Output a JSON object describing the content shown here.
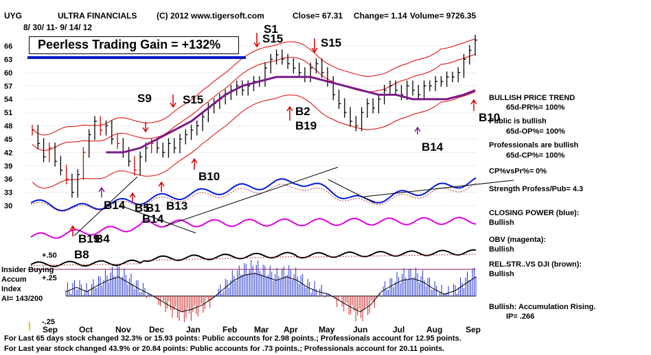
{
  "header": {
    "ticker": "UYG",
    "name": "ULTRA FINANCIALS",
    "copyright": "(C) 2012 www.tigersoft.com",
    "close": "Close=  67.31",
    "change": "Change= 1.14",
    "volume": "Volume= 9726.35",
    "date_range": "8/ 30/ 11-  9/ 14/ 12"
  },
  "gain_box": {
    "text": "Peerless Trading Gain = +132%"
  },
  "left_labels": {
    "insider": "Insider Buying",
    "accum": "Accum",
    "index": "Index",
    "ai": "AI= 143/200",
    "plus50": "+.50",
    "plus25": "+.25",
    "minus25": "-.25"
  },
  "side_labels": [
    "BULLISH PRICE TREND",
    "65d-PR%= 100%",
    "Public is bullish",
    "65d-OP%= 100%",
    "Professionals are bullish",
    "65d-CP%= 100%",
    "CP%vsPr%=  0%",
    "Strength Profess/Pub= 4.3",
    "CLOSING POWER (blue):",
    "Bullish",
    "OBV (magenta):",
    "Bullish",
    "REL.STR..VS DJI (brown):",
    "Bullish",
    "Bullish: Accumulation Rising.",
    "IP= .266"
  ],
  "footer": {
    "line1": "For Last 65 days stock changed  32.3% or  15.93 points:  Public accounts for  2.98 points.;  Professionals account for  12.95 points.",
    "line2": "For Last year stock changed  43.9% or  20.84 points:  Public accounts for  .73 points.;  Professionals account for  20.11 points."
  },
  "chart_data": {
    "type": "line",
    "y_ticks": [
      66,
      63,
      60,
      57,
      54,
      51,
      48,
      45,
      42,
      39,
      36,
      33,
      30
    ],
    "x_ticks": [
      "Sep",
      "Oct",
      "Nov",
      "Dec",
      "Jan",
      "Feb",
      "Mar",
      "Apr",
      "May",
      "Jun",
      "Jul",
      "Aug",
      "Sep"
    ],
    "ylim": [
      30,
      67
    ],
    "price_close": [
      [
        "Sep",
        47
      ],
      [
        "Sep",
        44
      ],
      [
        "Sep",
        41
      ],
      [
        "Sep",
        43
      ],
      [
        "Sep",
        40
      ],
      [
        "Sep",
        38
      ],
      [
        "Oct",
        36
      ],
      [
        "Oct",
        33
      ],
      [
        "Oct",
        37
      ],
      [
        "Oct",
        42
      ],
      [
        "Oct",
        46
      ],
      [
        "Oct",
        49
      ],
      [
        "Oct",
        47
      ],
      [
        "Oct",
        48
      ],
      [
        "Nov",
        45
      ],
      [
        "Nov",
        44
      ],
      [
        "Nov",
        42
      ],
      [
        "Nov",
        40
      ],
      [
        "Nov",
        38
      ],
      [
        "Nov",
        41
      ],
      [
        "Nov",
        43
      ],
      [
        "Nov",
        44
      ],
      [
        "Dec",
        43
      ],
      [
        "Dec",
        42
      ],
      [
        "Dec",
        44
      ],
      [
        "Dec",
        43
      ],
      [
        "Dec",
        45
      ],
      [
        "Dec",
        46
      ],
      [
        "Jan",
        47
      ],
      [
        "Jan",
        48
      ],
      [
        "Jan",
        50
      ],
      [
        "Jan",
        52
      ],
      [
        "Jan",
        53
      ],
      [
        "Jan",
        54
      ],
      [
        "Feb",
        55
      ],
      [
        "Feb",
        56
      ],
      [
        "Feb",
        57
      ],
      [
        "Feb",
        56
      ],
      [
        "Feb",
        57
      ],
      [
        "Feb",
        58
      ],
      [
        "Mar",
        58
      ],
      [
        "Mar",
        61
      ],
      [
        "Mar",
        63
      ],
      [
        "Mar",
        64
      ],
      [
        "Mar",
        63
      ],
      [
        "Mar",
        62
      ],
      [
        "Apr",
        61
      ],
      [
        "Apr",
        60
      ],
      [
        "Apr",
        59
      ],
      [
        "Apr",
        61
      ],
      [
        "Apr",
        62
      ],
      [
        "Apr",
        60
      ],
      [
        "May",
        58
      ],
      [
        "May",
        55
      ],
      [
        "May",
        53
      ],
      [
        "May",
        51
      ],
      [
        "May",
        49
      ],
      [
        "May",
        48
      ],
      [
        "Jun",
        51
      ],
      [
        "Jun",
        53
      ],
      [
        "Jun",
        52
      ],
      [
        "Jun",
        54
      ],
      [
        "Jun",
        56
      ],
      [
        "Jun",
        57
      ],
      [
        "Jul",
        56
      ],
      [
        "Jul",
        55
      ],
      [
        "Jul",
        57
      ],
      [
        "Jul",
        56
      ],
      [
        "Jul",
        55
      ],
      [
        "Jul",
        57
      ],
      [
        "Aug",
        57
      ],
      [
        "Aug",
        58
      ],
      [
        "Aug",
        58
      ],
      [
        "Aug",
        59
      ],
      [
        "Aug",
        59
      ],
      [
        "Aug",
        60
      ],
      [
        "Sep",
        63
      ],
      [
        "Sep",
        65
      ],
      [
        "Sep",
        67.31
      ]
    ],
    "moving_average_purple": [
      [
        13,
        42
      ],
      [
        16,
        42
      ],
      [
        19,
        43
      ],
      [
        22,
        45
      ],
      [
        25,
        47
      ],
      [
        28,
        49
      ],
      [
        31,
        52
      ],
      [
        34,
        55
      ],
      [
        37,
        57
      ],
      [
        40,
        58
      ],
      [
        43,
        59
      ],
      [
        46,
        59
      ],
      [
        49,
        59
      ],
      [
        52,
        58
      ],
      [
        55,
        57
      ],
      [
        58,
        56
      ],
      [
        61,
        55
      ],
      [
        64,
        55
      ],
      [
        67,
        54
      ],
      [
        70,
        54
      ],
      [
        73,
        54
      ],
      [
        76,
        55
      ],
      [
        78,
        56
      ]
    ],
    "signals": [
      {
        "label": "S1",
        "dir": "sell"
      },
      {
        "label": "S15",
        "dir": "sell"
      },
      {
        "label": "S15",
        "dir": "sell"
      },
      {
        "label": "S9",
        "dir": "sell"
      },
      {
        "label": "S15",
        "dir": "sell"
      },
      {
        "label": "B2",
        "dir": "buy"
      },
      {
        "label": "B19",
        "dir": "buy"
      },
      {
        "label": "B10",
        "dir": "buy"
      },
      {
        "label": "B10",
        "dir": "buy"
      },
      {
        "label": "B14",
        "dir": "buy"
      },
      {
        "label": "B14",
        "dir": "buy"
      },
      {
        "label": "B5",
        "dir": "buy"
      },
      {
        "label": "B1",
        "dir": "buy"
      },
      {
        "label": "B13",
        "dir": "buy"
      },
      {
        "label": "B14",
        "dir": "buy"
      },
      {
        "label": "B19",
        "dir": "buy"
      },
      {
        "label": "B4",
        "dir": "buy"
      },
      {
        "label": "B8",
        "dir": "buy"
      }
    ],
    "indicators": [
      "Closing Power (blue)",
      "OBV (magenta)",
      "Rel. Str. vs DJI (brown)",
      "Accumulation Index"
    ],
    "accum_index": [
      [
        0,
        0.05
      ],
      [
        2,
        0.1
      ],
      [
        4,
        0.05
      ],
      [
        6,
        0.12
      ],
      [
        8,
        0.18
      ],
      [
        10,
        0.22
      ],
      [
        12,
        0.15
      ],
      [
        14,
        0.08
      ],
      [
        16,
        0.02
      ],
      [
        18,
        -0.05
      ],
      [
        20,
        -0.12
      ],
      [
        22,
        -0.18
      ],
      [
        24,
        -0.15
      ],
      [
        26,
        -0.1
      ],
      [
        28,
        -0.02
      ],
      [
        30,
        0.08
      ],
      [
        32,
        0.18
      ],
      [
        34,
        0.24
      ],
      [
        36,
        0.26
      ],
      [
        38,
        0.22
      ],
      [
        40,
        0.18
      ],
      [
        42,
        0.22
      ],
      [
        44,
        0.18
      ],
      [
        46,
        0.1
      ],
      [
        48,
        0.05
      ],
      [
        50,
        0.02
      ],
      [
        52,
        -0.05
      ],
      [
        54,
        -0.12
      ],
      [
        56,
        -0.18
      ],
      [
        58,
        -0.1
      ],
      [
        60,
        0.05
      ],
      [
        62,
        0.12
      ],
      [
        64,
        0.18
      ],
      [
        66,
        0.2
      ],
      [
        68,
        0.16
      ],
      [
        70,
        0.08
      ],
      [
        72,
        0.02
      ],
      [
        74,
        0.06
      ],
      [
        76,
        0.14
      ],
      [
        78,
        0.22
      ]
    ]
  }
}
